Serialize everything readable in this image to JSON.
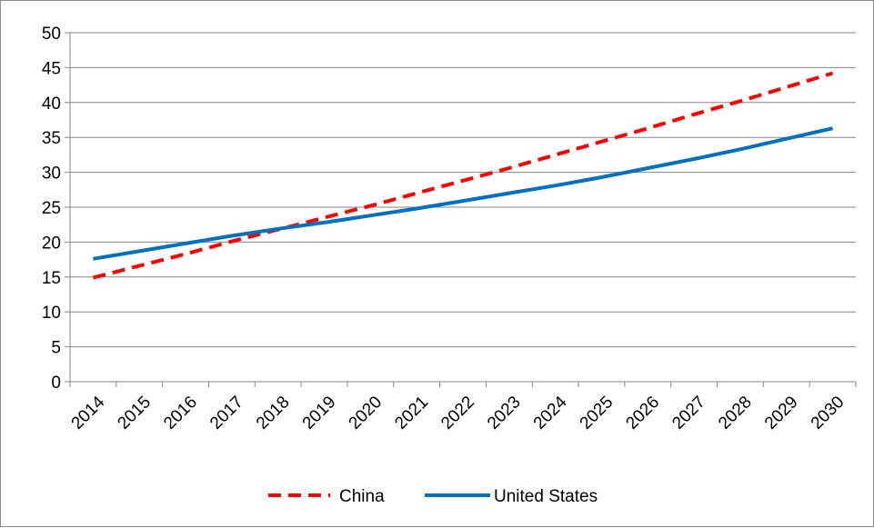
{
  "chart_data": {
    "type": "line",
    "title": "",
    "xlabel": "",
    "ylabel": "",
    "x": [
      "2014",
      "2015",
      "2016",
      "2017",
      "2018",
      "2019",
      "2020",
      "2021",
      "2022",
      "2023",
      "2024",
      "2025",
      "2026",
      "2027",
      "2028",
      "2029",
      "2030"
    ],
    "ylim": [
      0,
      50
    ],
    "yticks": [
      0,
      5,
      10,
      15,
      20,
      25,
      30,
      35,
      40,
      45,
      50
    ],
    "grid": true,
    "legend_position": "bottom",
    "series": [
      {
        "name": "China",
        "color": "#ff0000",
        "style": "dashed",
        "values": [
          14.9,
          16.6,
          18.3,
          20.1,
          21.8,
          23.5,
          25.2,
          27.0,
          28.8,
          30.6,
          32.5,
          34.4,
          36.3,
          38.3,
          40.2,
          42.2,
          44.2
        ]
      },
      {
        "name": "United States",
        "color": "#0070c0",
        "style": "solid",
        "values": [
          17.6,
          18.7,
          19.8,
          20.9,
          21.9,
          22.8,
          23.8,
          24.8,
          25.9,
          27.0,
          28.1,
          29.3,
          30.6,
          31.9,
          33.3,
          34.8,
          36.3
        ]
      }
    ]
  }
}
